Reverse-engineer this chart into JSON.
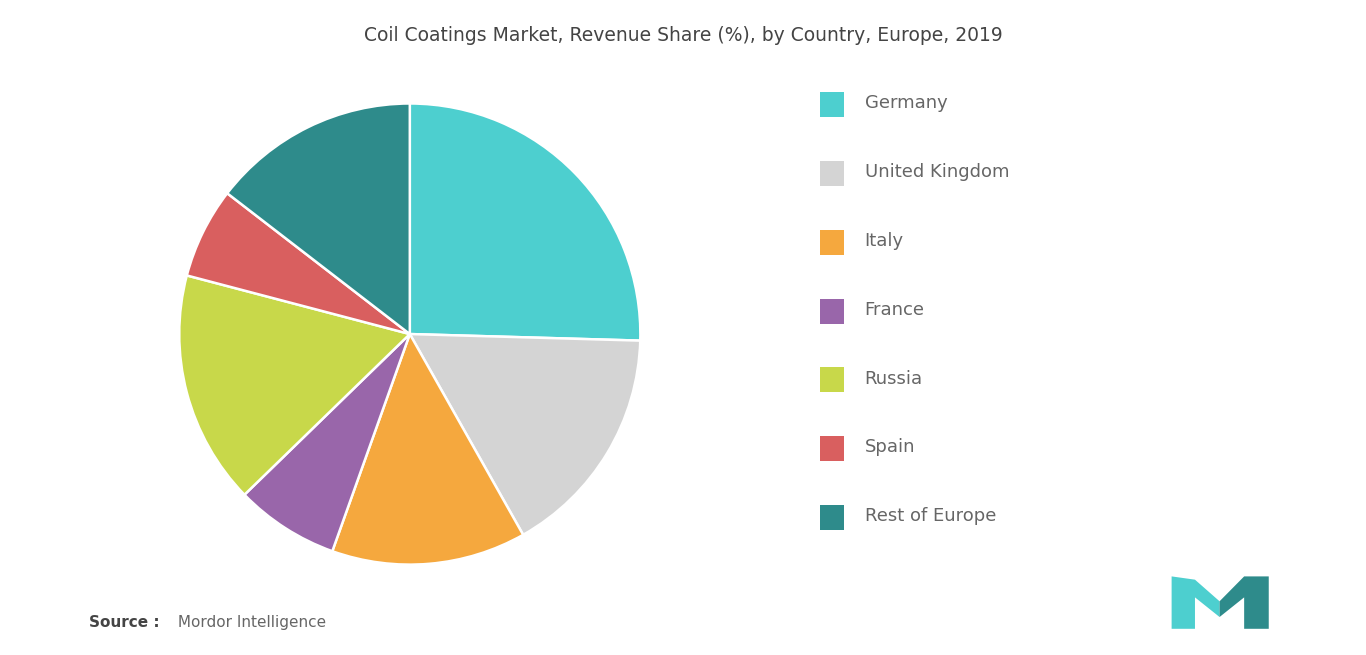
{
  "title": "Coil Coatings Market, Revenue Share (%), by Country, Europe, 2019",
  "labels": [
    "Germany",
    "United Kingdom",
    "Italy",
    "France",
    "Russia",
    "Spain",
    "Rest of Europe"
  ],
  "values": [
    28,
    18,
    15,
    8,
    18,
    7,
    16
  ],
  "colors": [
    "#4dcfcf",
    "#d4d4d4",
    "#f5a83e",
    "#9966aa",
    "#c8d84a",
    "#d95f5f",
    "#2e8b8b"
  ],
  "legend_colors": [
    "#4dcfcf",
    "#d4d4d4",
    "#f5a83e",
    "#9966aa",
    "#c8d84a",
    "#d95f5f",
    "#2e8b8b"
  ],
  "startangle": 90,
  "background_color": "#ffffff",
  "title_fontsize": 13.5,
  "legend_fontsize": 13,
  "source_bold": "Source :",
  "source_rest": " Mordor Intelligence"
}
